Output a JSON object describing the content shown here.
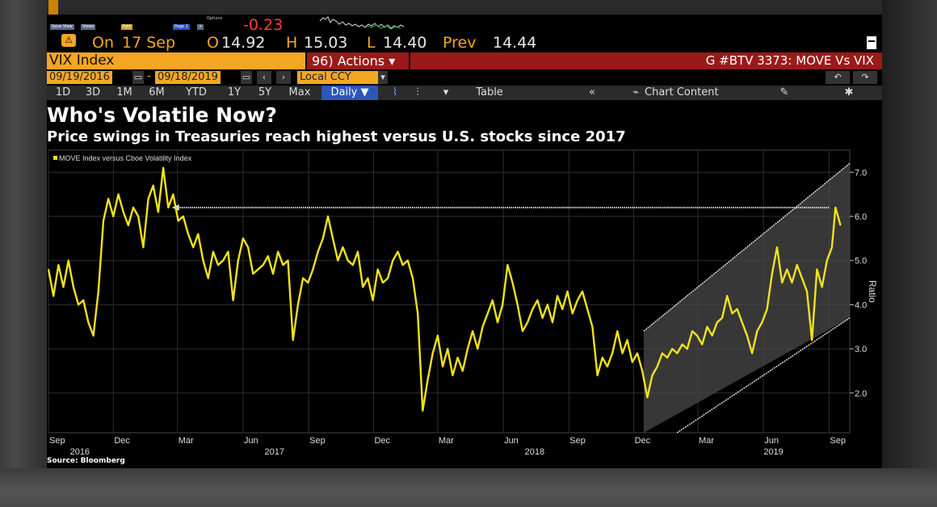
{
  "launchpad": {
    "buttons": [
      "Save View",
      "Views",
      "Edit",
      "",
      "Page 1",
      "+",
      "Options"
    ]
  },
  "header": {
    "last_change": "-0.23",
    "on_label": "On",
    "date": "17 Sep",
    "open_label": "O",
    "open": "14.92",
    "high_label": "H",
    "high": "15.03",
    "low_label": "L",
    "low": "14.40",
    "prev_label": "Prev",
    "prev": "14.44"
  },
  "security": {
    "name": "VIX Index",
    "actions_label": "96) Actions ▾",
    "function_title": "G #BTV 3373: MOVE Vs VIX"
  },
  "date_range": {
    "start": "09/19/2016",
    "end": "09/18/2019",
    "currency": "Local CCY"
  },
  "toolbar": {
    "periods": [
      "1D",
      "3D",
      "1M",
      "6M",
      "YTD",
      "1Y",
      "5Y",
      "Max"
    ],
    "frequency": "Daily ▼",
    "table_label": "Table",
    "chart_content_label": "Chart Content"
  },
  "colors": {
    "accent_orange": "#f5a623",
    "line_yellow": "#f2e21b",
    "action_red": "#9a1a1a",
    "active_blue": "#2d56b8",
    "channel_fill": "#4a4a4a"
  },
  "chart_data": {
    "type": "line",
    "title": "Who's Volatile Now?",
    "subtitle": "Price swings in Treasuries reach highest versus U.S. stocks since 2017",
    "legend": "MOVE Index versus Cboe Volatility Index",
    "ylabel": "Ratio",
    "ylim": [
      1.1,
      7.5
    ],
    "yticks": [
      2.0,
      3.0,
      4.0,
      5.0,
      6.0,
      7.0
    ],
    "month_ticks": [
      "Sep",
      "Dec",
      "Mar",
      "Jun",
      "Sep",
      "Dec",
      "Mar",
      "Jun",
      "Sep",
      "Dec",
      "Mar",
      "Jun",
      "Sep"
    ],
    "year_labels": [
      "2016",
      "2017",
      "2018",
      "2019"
    ],
    "x_start": "2016-09-01",
    "x_end": "2019-09-30",
    "series": [
      {
        "name": "MOVE Index versus Cboe Volatility Index",
        "points": [
          [
            "2016-09-01",
            4.8
          ],
          [
            "2016-09-08",
            4.2
          ],
          [
            "2016-09-15",
            4.9
          ],
          [
            "2016-09-22",
            4.4
          ],
          [
            "2016-09-29",
            5.0
          ],
          [
            "2016-10-06",
            4.4
          ],
          [
            "2016-10-13",
            4.0
          ],
          [
            "2016-10-20",
            4.1
          ],
          [
            "2016-10-27",
            3.6
          ],
          [
            "2016-11-03",
            3.3
          ],
          [
            "2016-11-10",
            4.3
          ],
          [
            "2016-11-17",
            5.9
          ],
          [
            "2016-11-24",
            6.4
          ],
          [
            "2016-12-01",
            6.0
          ],
          [
            "2016-12-08",
            6.5
          ],
          [
            "2016-12-15",
            6.1
          ],
          [
            "2016-12-22",
            5.8
          ],
          [
            "2016-12-29",
            6.2
          ],
          [
            "2017-01-05",
            6.0
          ],
          [
            "2017-01-12",
            5.3
          ],
          [
            "2017-01-19",
            6.4
          ],
          [
            "2017-01-26",
            6.7
          ],
          [
            "2017-02-02",
            6.1
          ],
          [
            "2017-02-09",
            7.1
          ],
          [
            "2017-02-16",
            6.2
          ],
          [
            "2017-02-23",
            6.5
          ],
          [
            "2017-03-02",
            5.9
          ],
          [
            "2017-03-09",
            6.0
          ],
          [
            "2017-03-16",
            5.6
          ],
          [
            "2017-03-23",
            5.3
          ],
          [
            "2017-03-30",
            5.6
          ],
          [
            "2017-04-06",
            5.0
          ],
          [
            "2017-04-13",
            4.6
          ],
          [
            "2017-04-20",
            5.2
          ],
          [
            "2017-04-27",
            4.9
          ],
          [
            "2017-05-04",
            5.0
          ],
          [
            "2017-05-11",
            5.2
          ],
          [
            "2017-05-18",
            4.1
          ],
          [
            "2017-05-25",
            5.0
          ],
          [
            "2017-06-01",
            5.5
          ],
          [
            "2017-06-08",
            5.3
          ],
          [
            "2017-06-15",
            4.7
          ],
          [
            "2017-06-22",
            4.8
          ],
          [
            "2017-06-29",
            4.9
          ],
          [
            "2017-07-06",
            5.1
          ],
          [
            "2017-07-13",
            4.7
          ],
          [
            "2017-07-20",
            5.2
          ],
          [
            "2017-07-27",
            4.9
          ],
          [
            "2017-08-03",
            5.0
          ],
          [
            "2017-08-10",
            3.2
          ],
          [
            "2017-08-17",
            4.0
          ],
          [
            "2017-08-24",
            4.6
          ],
          [
            "2017-08-31",
            4.5
          ],
          [
            "2017-09-07",
            4.8
          ],
          [
            "2017-09-14",
            5.2
          ],
          [
            "2017-09-21",
            5.5
          ],
          [
            "2017-09-28",
            6.0
          ],
          [
            "2017-10-05",
            5.5
          ],
          [
            "2017-10-12",
            5.0
          ],
          [
            "2017-10-19",
            5.3
          ],
          [
            "2017-10-26",
            5.0
          ],
          [
            "2017-11-02",
            4.9
          ],
          [
            "2017-11-09",
            5.2
          ],
          [
            "2017-11-16",
            4.4
          ],
          [
            "2017-11-23",
            4.6
          ],
          [
            "2017-11-30",
            4.1
          ],
          [
            "2017-12-07",
            4.8
          ],
          [
            "2017-12-14",
            4.5
          ],
          [
            "2017-12-21",
            4.6
          ],
          [
            "2017-12-28",
            5.0
          ],
          [
            "2018-01-04",
            5.2
          ],
          [
            "2018-01-11",
            4.9
          ],
          [
            "2018-01-18",
            5.0
          ],
          [
            "2018-01-25",
            4.6
          ],
          [
            "2018-02-01",
            3.8
          ],
          [
            "2018-02-08",
            1.6
          ],
          [
            "2018-02-15",
            2.3
          ],
          [
            "2018-02-22",
            2.9
          ],
          [
            "2018-03-01",
            3.3
          ],
          [
            "2018-03-08",
            2.6
          ],
          [
            "2018-03-15",
            3.0
          ],
          [
            "2018-03-22",
            2.4
          ],
          [
            "2018-03-29",
            2.8
          ],
          [
            "2018-04-05",
            2.5
          ],
          [
            "2018-04-12",
            3.0
          ],
          [
            "2018-04-19",
            3.4
          ],
          [
            "2018-04-26",
            3.0
          ],
          [
            "2018-05-03",
            3.5
          ],
          [
            "2018-05-10",
            3.8
          ],
          [
            "2018-05-17",
            4.1
          ],
          [
            "2018-05-24",
            3.6
          ],
          [
            "2018-05-31",
            4.0
          ],
          [
            "2018-06-07",
            4.9
          ],
          [
            "2018-06-14",
            4.5
          ],
          [
            "2018-06-21",
            4.0
          ],
          [
            "2018-06-28",
            3.4
          ],
          [
            "2018-07-05",
            3.6
          ],
          [
            "2018-07-12",
            3.9
          ],
          [
            "2018-07-19",
            4.1
          ],
          [
            "2018-07-26",
            3.7
          ],
          [
            "2018-08-02",
            4.0
          ],
          [
            "2018-08-09",
            3.6
          ],
          [
            "2018-08-16",
            4.2
          ],
          [
            "2018-08-23",
            3.9
          ],
          [
            "2018-08-30",
            4.3
          ],
          [
            "2018-09-06",
            3.8
          ],
          [
            "2018-09-13",
            4.1
          ],
          [
            "2018-09-20",
            4.3
          ],
          [
            "2018-09-27",
            3.9
          ],
          [
            "2018-10-04",
            3.5
          ],
          [
            "2018-10-11",
            2.4
          ],
          [
            "2018-10-18",
            2.8
          ],
          [
            "2018-10-25",
            2.6
          ],
          [
            "2018-11-01",
            2.9
          ],
          [
            "2018-11-08",
            3.4
          ],
          [
            "2018-11-15",
            2.9
          ],
          [
            "2018-11-22",
            3.2
          ],
          [
            "2018-11-29",
            2.7
          ],
          [
            "2018-12-06",
            2.9
          ],
          [
            "2018-12-13",
            2.5
          ],
          [
            "2018-12-20",
            1.9
          ],
          [
            "2018-12-27",
            2.4
          ],
          [
            "2019-01-03",
            2.6
          ],
          [
            "2019-01-10",
            2.9
          ],
          [
            "2019-01-17",
            2.8
          ],
          [
            "2019-01-24",
            3.0
          ],
          [
            "2019-01-31",
            2.9
          ],
          [
            "2019-02-07",
            3.1
          ],
          [
            "2019-02-14",
            3.0
          ],
          [
            "2019-02-21",
            3.4
          ],
          [
            "2019-02-28",
            3.3
          ],
          [
            "2019-03-07",
            3.1
          ],
          [
            "2019-03-14",
            3.5
          ],
          [
            "2019-03-21",
            3.3
          ],
          [
            "2019-03-28",
            3.6
          ],
          [
            "2019-04-04",
            3.7
          ],
          [
            "2019-04-11",
            4.2
          ],
          [
            "2019-04-18",
            3.8
          ],
          [
            "2019-04-25",
            3.9
          ],
          [
            "2019-05-02",
            3.6
          ],
          [
            "2019-05-09",
            3.3
          ],
          [
            "2019-05-16",
            2.9
          ],
          [
            "2019-05-23",
            3.4
          ],
          [
            "2019-05-30",
            3.6
          ],
          [
            "2019-06-06",
            3.9
          ],
          [
            "2019-06-13",
            4.7
          ],
          [
            "2019-06-20",
            5.3
          ],
          [
            "2019-06-27",
            4.5
          ],
          [
            "2019-07-04",
            4.8
          ],
          [
            "2019-07-11",
            4.5
          ],
          [
            "2019-07-18",
            4.9
          ],
          [
            "2019-07-25",
            4.6
          ],
          [
            "2019-08-01",
            4.3
          ],
          [
            "2019-08-08",
            3.2
          ],
          [
            "2019-08-15",
            4.8
          ],
          [
            "2019-08-22",
            4.4
          ],
          [
            "2019-08-29",
            5.0
          ],
          [
            "2019-09-05",
            5.3
          ],
          [
            "2019-09-10",
            6.2
          ],
          [
            "2019-09-17",
            5.8
          ]
        ]
      }
    ],
    "annotations": [
      {
        "type": "horizontal-arrow",
        "y": 6.2,
        "from": "2019-09-01",
        "to": "2017-03-01"
      },
      {
        "type": "rising-channel",
        "from": "2018-12-15",
        "to": "2019-09-30",
        "upper": [
          3.4,
          7.2
        ],
        "lower": [
          0.6,
          3.7
        ]
      }
    ],
    "source": "Source: Bloomberg"
  }
}
